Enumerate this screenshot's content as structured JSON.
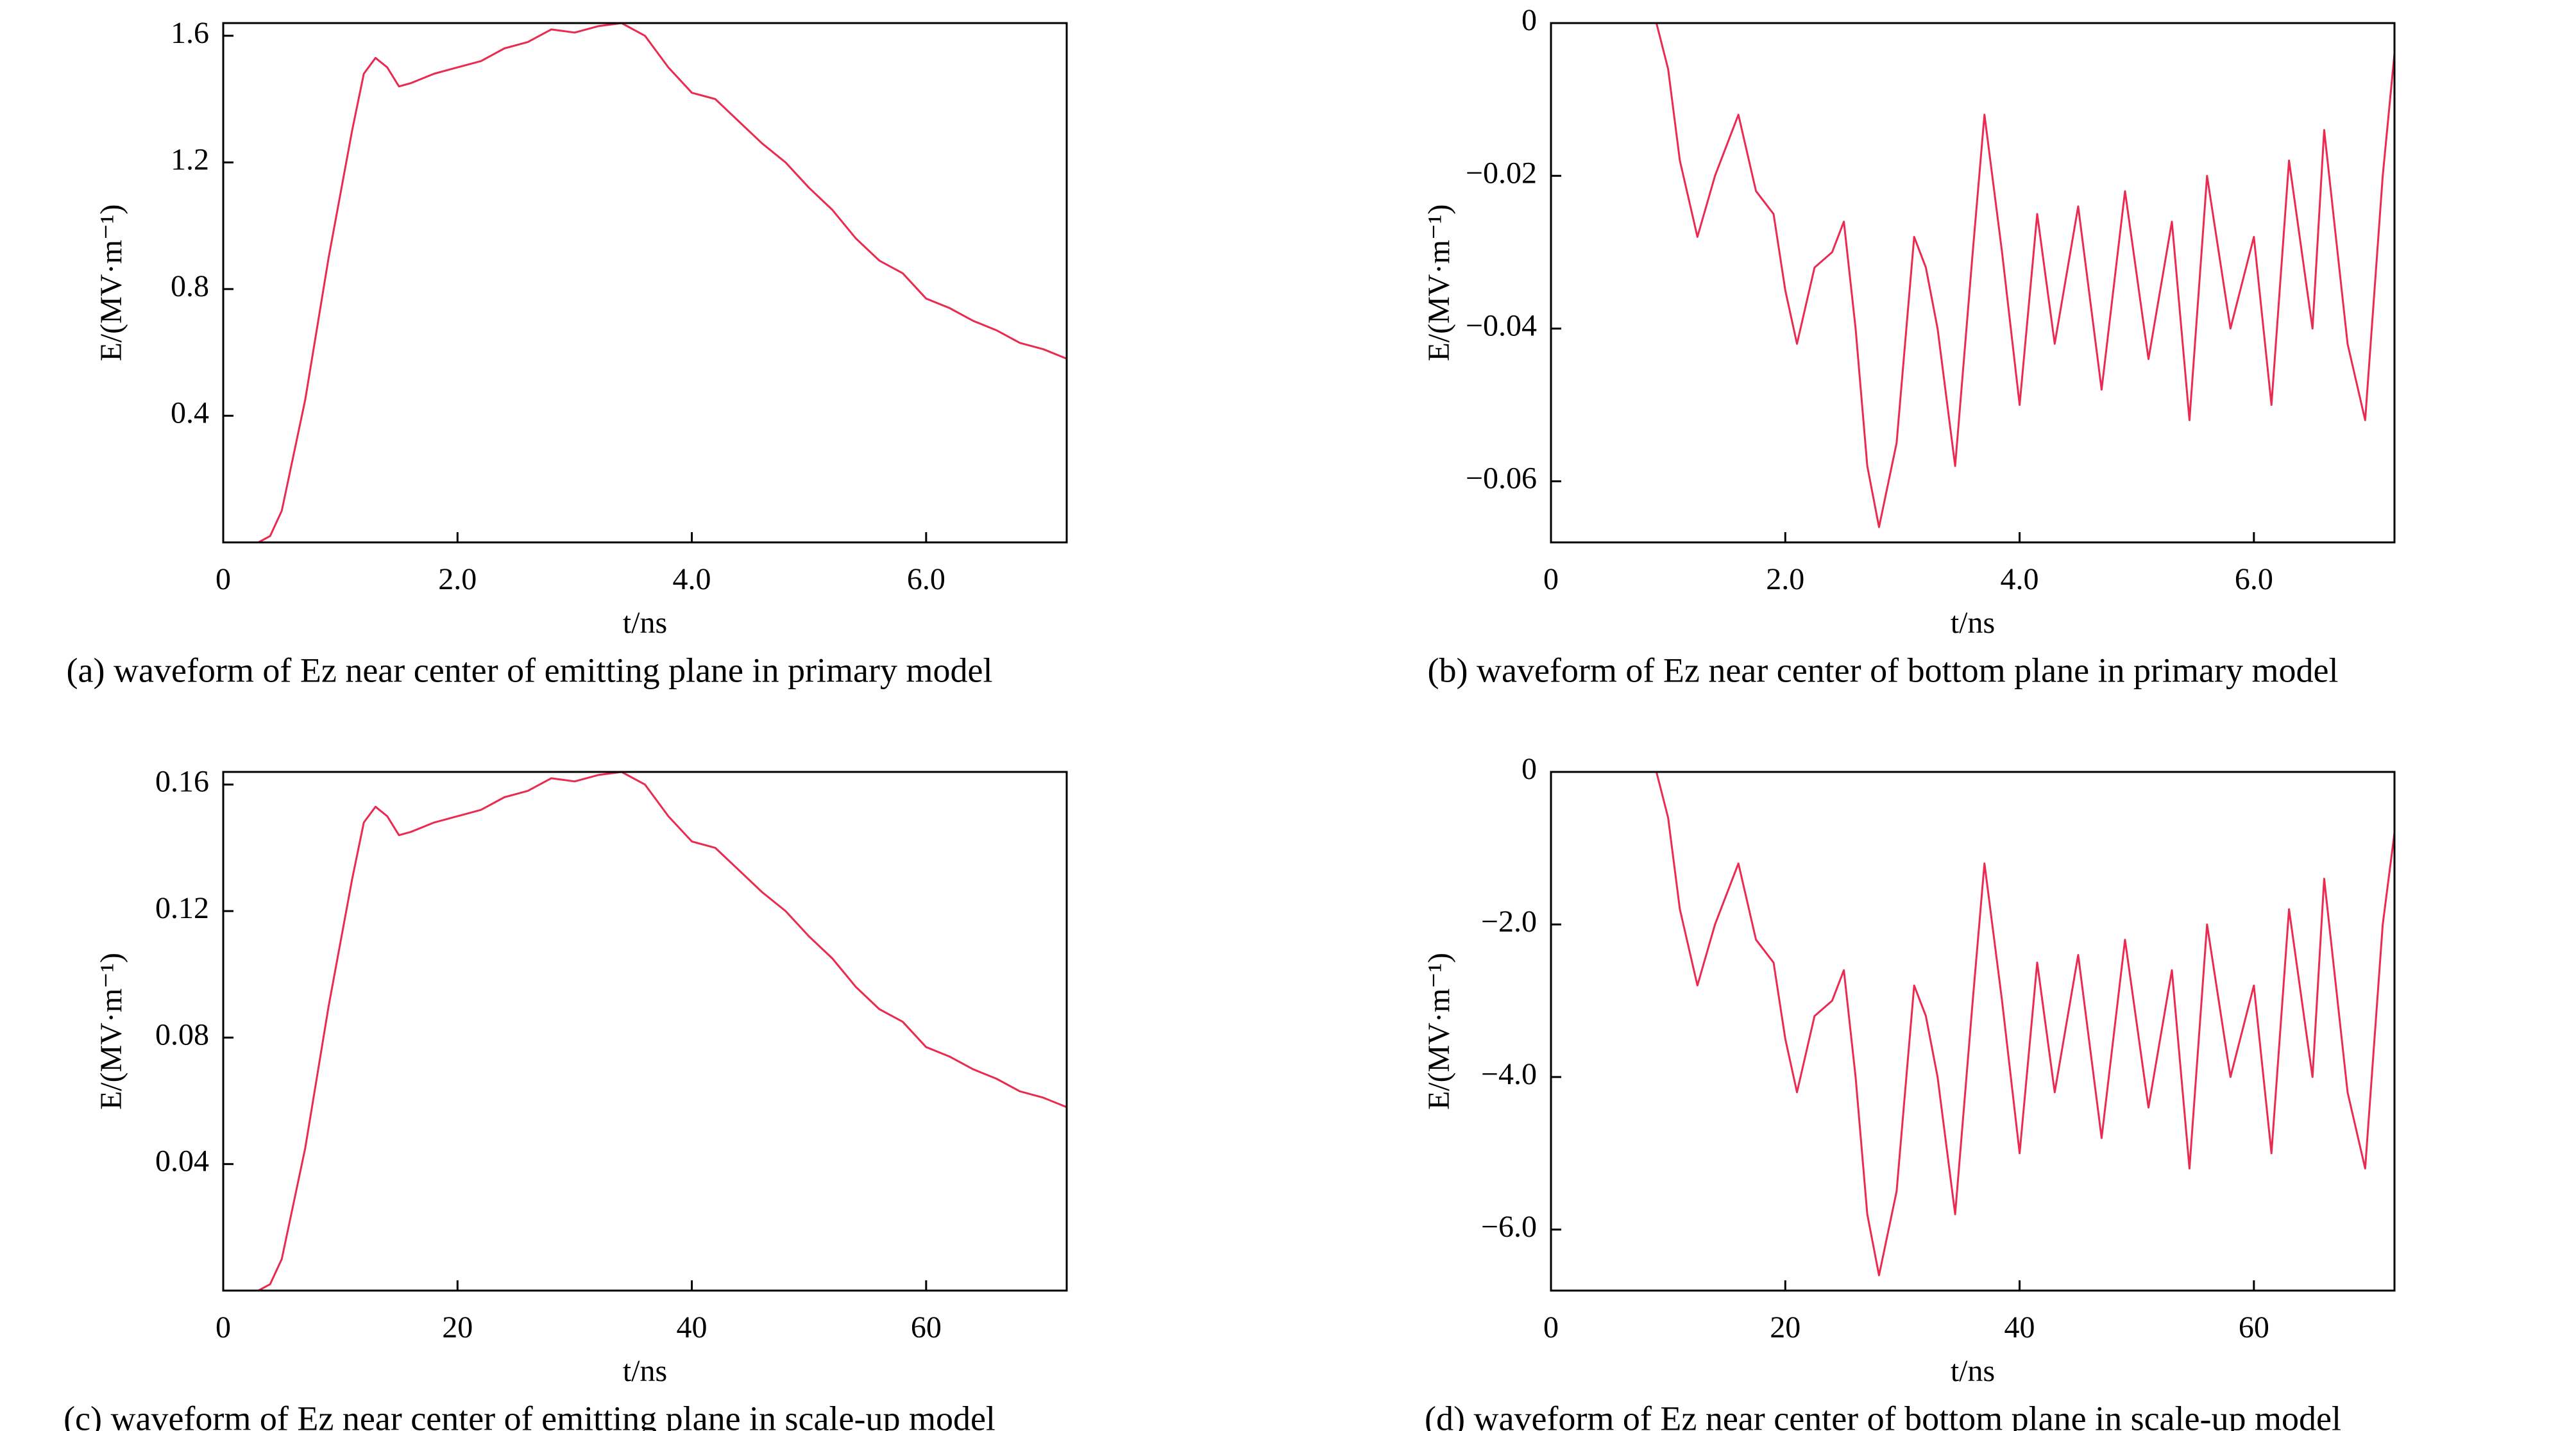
{
  "chart_data": [
    {
      "type": "line",
      "title": "(a) waveform of Ez near center of emitting plane in primary model",
      "xlabel": "t/ns",
      "ylabel": "E/(MV·m⁻¹)",
      "color": "#ea2a50",
      "x": [
        0,
        0.3,
        0.4,
        0.5,
        0.7,
        0.9,
        1.1,
        1.2,
        1.3,
        1.4,
        1.5,
        1.6,
        1.8,
        2.0,
        2.2,
        2.4,
        2.6,
        2.8,
        3.0,
        3.2,
        3.4,
        3.6,
        3.8,
        4.0,
        4.2,
        4.4,
        4.6,
        4.8,
        5.0,
        5.2,
        5.4,
        5.6,
        5.8,
        6.0,
        6.2,
        6.4,
        6.6,
        6.8,
        7.0,
        7.2
      ],
      "values": [
        0,
        0,
        0.02,
        0.1,
        0.45,
        0.9,
        1.3,
        1.48,
        1.53,
        1.5,
        1.44,
        1.45,
        1.48,
        1.5,
        1.52,
        1.56,
        1.58,
        1.62,
        1.61,
        1.63,
        1.64,
        1.6,
        1.5,
        1.42,
        1.4,
        1.33,
        1.26,
        1.2,
        1.12,
        1.05,
        0.96,
        0.89,
        0.85,
        0.77,
        0.74,
        0.7,
        0.67,
        0.63,
        0.61,
        0.58
      ],
      "xlim": [
        0,
        7.2
      ],
      "ylim": [
        0,
        1.64
      ],
      "xticks": [
        0,
        {
          "value": 2,
          "label": "2.0"
        },
        {
          "value": 4,
          "label": "4.0"
        },
        {
          "value": 6,
          "label": "6.0"
        }
      ],
      "yticks": [
        0.4,
        0.8,
        1.2,
        1.6
      ]
    },
    {
      "type": "line",
      "title": "(b) waveform of Ez near center of bottom plane in primary model",
      "xlabel": "t/ns",
      "ylabel": "E/(MV·m⁻¹)",
      "color": "#ea2a50",
      "x": [
        0,
        0.9,
        1.0,
        1.1,
        1.25,
        1.4,
        1.6,
        1.75,
        1.9,
        2.0,
        2.1,
        2.25,
        2.4,
        2.5,
        2.6,
        2.7,
        2.8,
        2.95,
        3.1,
        3.2,
        3.3,
        3.45,
        3.6,
        3.7,
        3.85,
        4.0,
        4.15,
        4.3,
        4.5,
        4.7,
        4.9,
        5.1,
        5.3,
        5.45,
        5.6,
        5.8,
        6.0,
        6.15,
        6.3,
        6.5,
        6.6,
        6.8,
        6.95,
        7.1,
        7.2
      ],
      "values": [
        0,
        0,
        -0.006,
        -0.018,
        -0.028,
        -0.02,
        -0.012,
        -0.022,
        -0.025,
        -0.035,
        -0.042,
        -0.032,
        -0.03,
        -0.026,
        -0.04,
        -0.058,
        -0.066,
        -0.055,
        -0.028,
        -0.032,
        -0.04,
        -0.058,
        -0.03,
        -0.012,
        -0.03,
        -0.05,
        -0.025,
        -0.042,
        -0.024,
        -0.048,
        -0.022,
        -0.044,
        -0.026,
        -0.052,
        -0.02,
        -0.04,
        -0.028,
        -0.05,
        -0.018,
        -0.04,
        -0.014,
        -0.042,
        -0.052,
        -0.02,
        -0.004
      ],
      "xlim": [
        0,
        7.2
      ],
      "ylim": [
        -0.068,
        0
      ],
      "xticks": [
        0,
        {
          "value": 2,
          "label": "2.0"
        },
        {
          "value": 4,
          "label": "4.0"
        },
        {
          "value": 6,
          "label": "6.0"
        }
      ],
      "yticks": [
        0,
        {
          "value": -0.02,
          "label": "−0.02"
        },
        {
          "value": -0.04,
          "label": "−0.04"
        },
        {
          "value": -0.06,
          "label": "−0.06"
        }
      ]
    },
    {
      "type": "line",
      "title": "(c) waveform of Ez near center of emitting plane in scale-up model",
      "xlabel": "t/ns",
      "ylabel": "E/(MV·m⁻¹)",
      "color": "#ea2a50",
      "x": [
        0,
        3,
        4,
        5,
        7,
        9,
        11,
        12,
        13,
        14,
        15,
        16,
        18,
        20,
        22,
        24,
        26,
        28,
        30,
        32,
        34,
        36,
        38,
        40,
        42,
        44,
        46,
        48,
        50,
        52,
        54,
        56,
        58,
        60,
        62,
        64,
        66,
        68,
        70,
        72
      ],
      "values": [
        0,
        0,
        0.002,
        0.01,
        0.045,
        0.09,
        0.13,
        0.148,
        0.153,
        0.15,
        0.144,
        0.145,
        0.148,
        0.15,
        0.152,
        0.156,
        0.158,
        0.162,
        0.161,
        0.163,
        0.164,
        0.16,
        0.15,
        0.142,
        0.14,
        0.133,
        0.126,
        0.12,
        0.112,
        0.105,
        0.096,
        0.089,
        0.085,
        0.077,
        0.074,
        0.07,
        0.067,
        0.063,
        0.061,
        0.058
      ],
      "xlim": [
        0,
        72
      ],
      "ylim": [
        0,
        0.164
      ],
      "xticks": [
        0,
        20,
        40,
        60
      ],
      "yticks": [
        0.04,
        0.08,
        0.12,
        0.16
      ]
    },
    {
      "type": "line",
      "title": "(d) waveform of Ez near center of bottom plane in scale-up model",
      "xlabel": "t/ns",
      "ylabel": "E/(MV·m⁻¹)",
      "color": "#ea2a50",
      "x": [
        0,
        9,
        10,
        11,
        12.5,
        14,
        16,
        17.5,
        19,
        20,
        21,
        22.5,
        24,
        25,
        26,
        27,
        28,
        29.5,
        31,
        32,
        33,
        34.5,
        36,
        37,
        38.5,
        40,
        41.5,
        43,
        45,
        47,
        49,
        51,
        53,
        54.5,
        56,
        58,
        60,
        61.5,
        63,
        65,
        66,
        68,
        69.5,
        71,
        72
      ],
      "values": [
        0,
        0,
        -0.6,
        -1.8,
        -2.8,
        -2.0,
        -1.2,
        -2.2,
        -2.5,
        -3.5,
        -4.2,
        -3.2,
        -3.0,
        -2.6,
        -4.0,
        -5.8,
        -6.6,
        -5.5,
        -2.8,
        -3.2,
        -4.0,
        -5.8,
        -3.0,
        -1.2,
        -3.0,
        -5.0,
        -2.5,
        -4.2,
        -2.4,
        -4.8,
        -2.2,
        -4.4,
        -2.6,
        -5.2,
        -2.0,
        -4.0,
        -2.8,
        -5.0,
        -1.8,
        -4.0,
        -1.4,
        -4.2,
        -5.2,
        -2.0,
        -0.8
      ],
      "xlim": [
        0,
        72
      ],
      "ylim": [
        -6.8,
        0
      ],
      "xticks": [
        0,
        20,
        40,
        60
      ],
      "yticks": [
        0,
        {
          "value": -2,
          "label": "−2.0"
        },
        {
          "value": -4,
          "label": "−4.0"
        },
        {
          "value": -6,
          "label": "−6.0"
        }
      ]
    }
  ]
}
